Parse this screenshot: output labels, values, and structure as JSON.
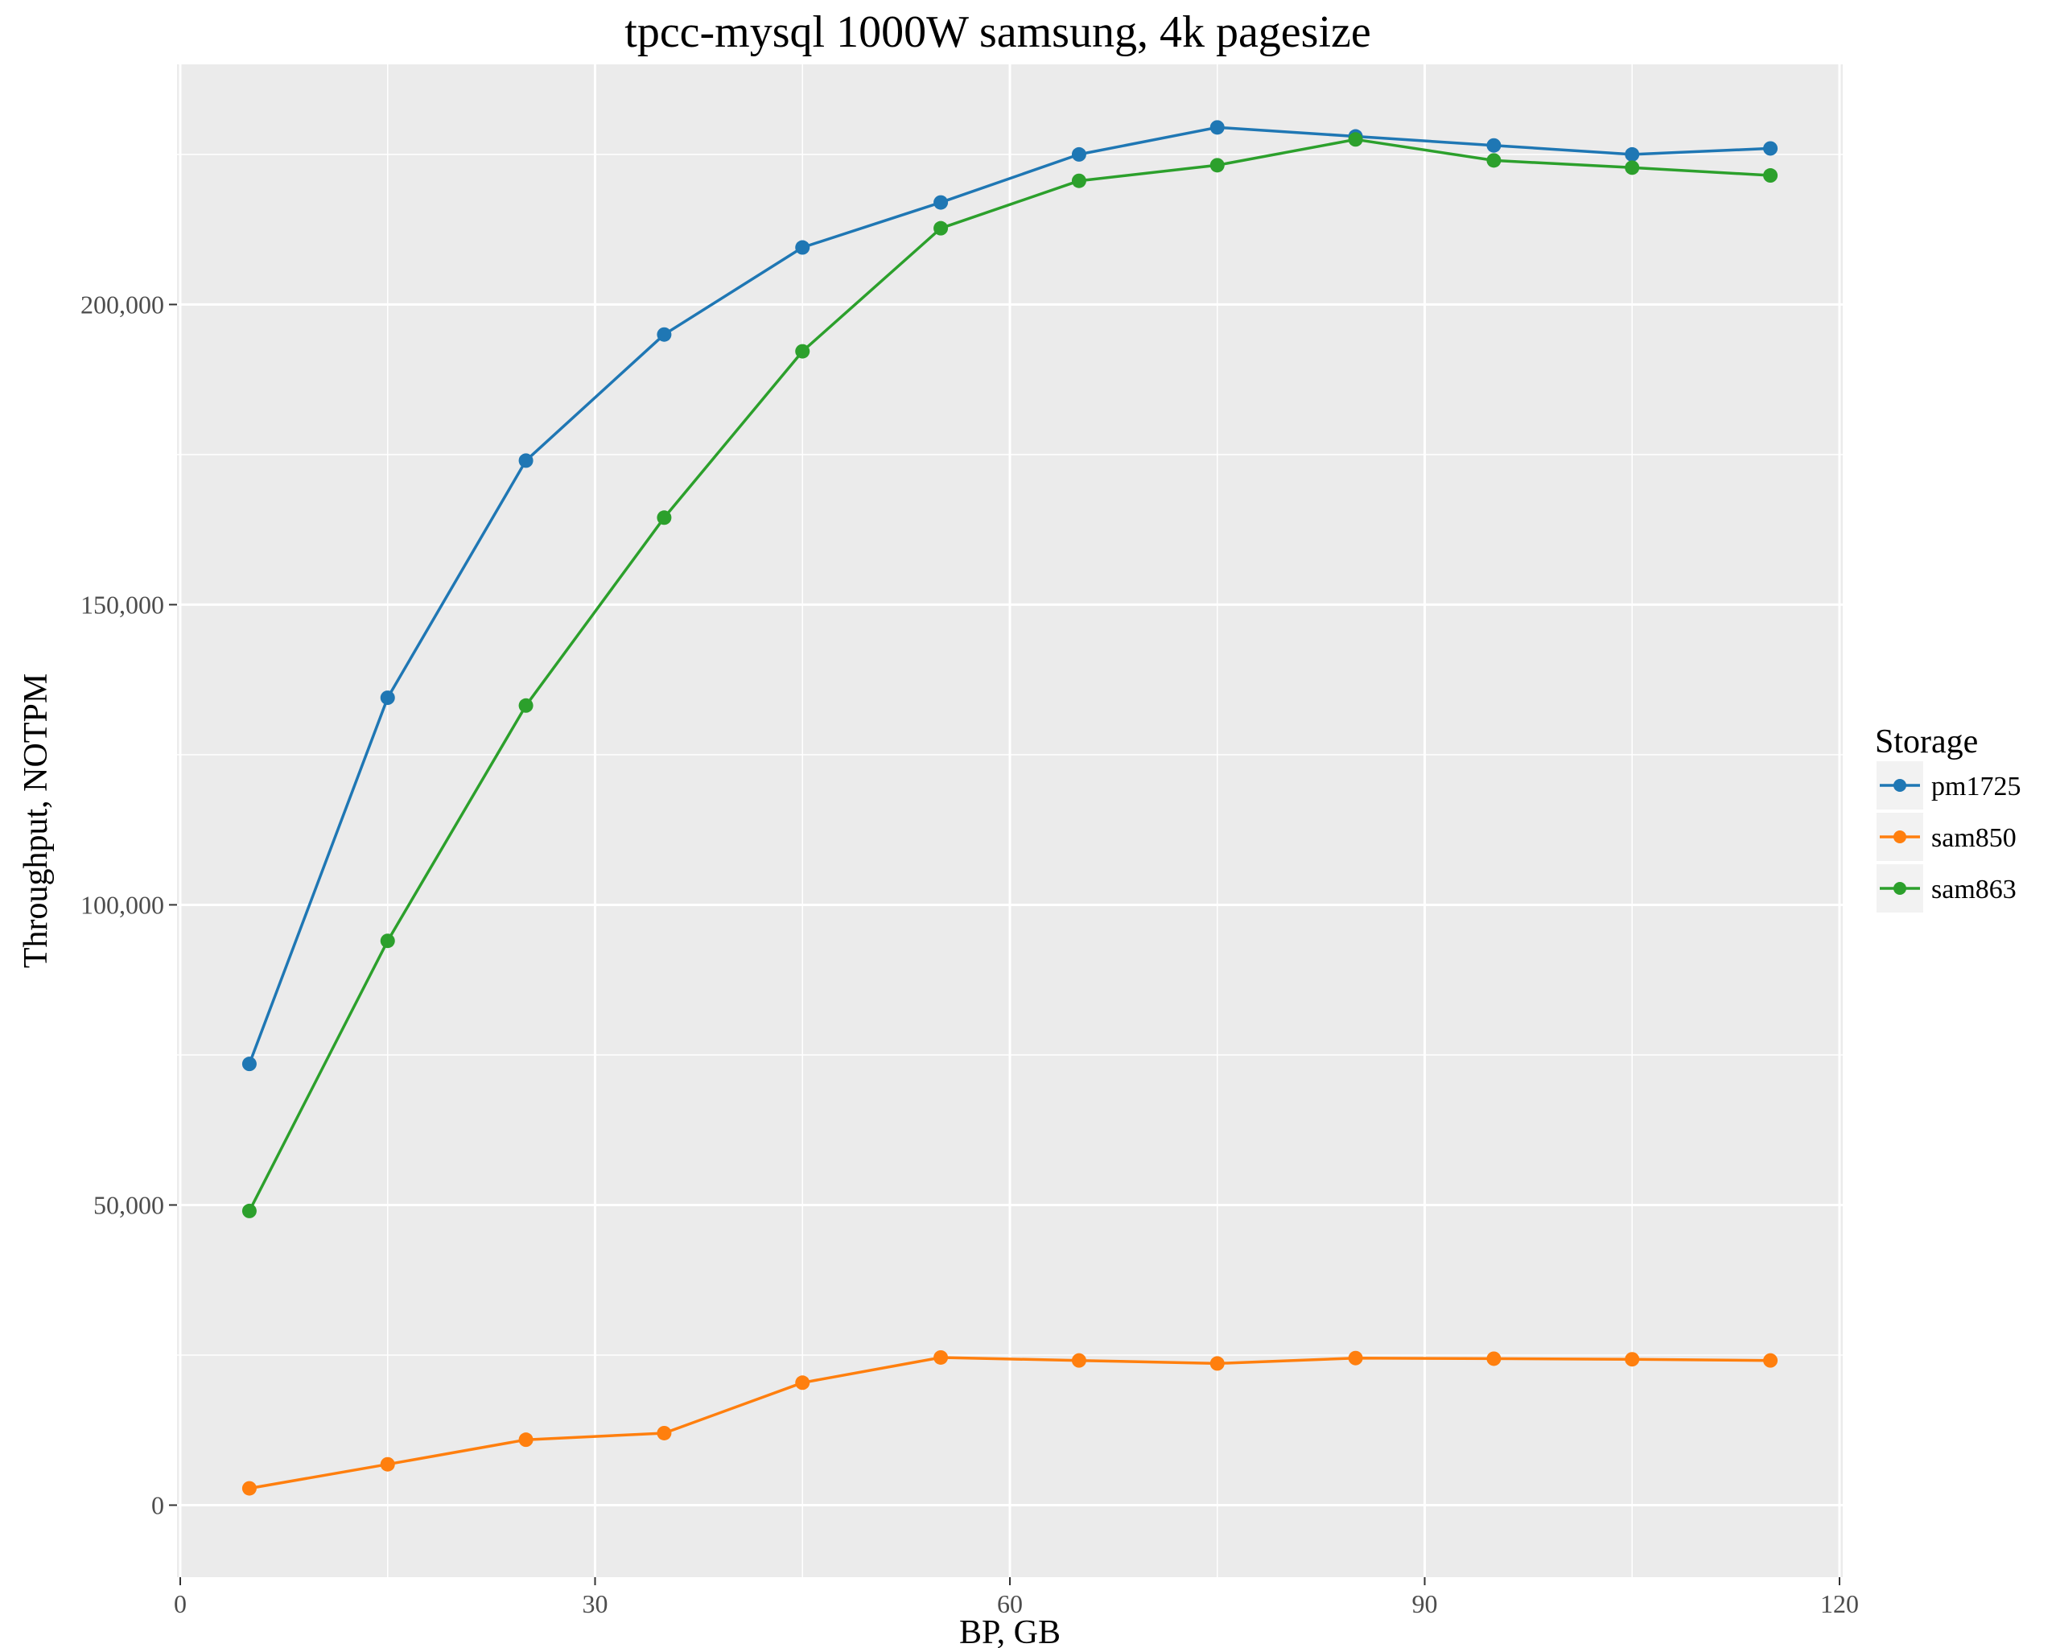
{
  "chart_data": {
    "type": "line",
    "title": "tpcc-mysql 1000W samsung, 4k pagesize",
    "xlabel": "BP, GB",
    "ylabel": "Throughput, NOTPM",
    "xlim": [
      0,
      120
    ],
    "ylim": [
      -12000,
      240000
    ],
    "x_ticks": [
      0,
      30,
      60,
      90,
      120
    ],
    "x_tick_labels": [
      "0",
      "30",
      "60",
      "90",
      "120"
    ],
    "y_ticks": [
      0,
      50000,
      100000,
      150000,
      200000
    ],
    "y_tick_labels": [
      "0",
      "50,000",
      "100,000",
      "150,000",
      "200,000"
    ],
    "grid": true,
    "panel_background": "#ebebeb",
    "legend": {
      "title": "Storage",
      "position": "right"
    },
    "x": [
      5,
      15,
      25,
      35,
      45,
      55,
      65,
      75,
      85,
      95,
      105,
      115
    ],
    "series": [
      {
        "name": "pm1725",
        "color": "#1f77b4",
        "values": [
          73500,
          134500,
          174000,
          195000,
          209500,
          217000,
          225000,
          229500,
          228000,
          226500,
          225000,
          226000
        ]
      },
      {
        "name": "sam850",
        "color": "#ff7f0e",
        "values": [
          2800,
          6800,
          10900,
          12000,
          20400,
          24600,
          24100,
          23600,
          24500,
          24400,
          24300,
          24100
        ]
      },
      {
        "name": "sam863",
        "color": "#2ca02c",
        "values": [
          49000,
          94000,
          133200,
          164500,
          192200,
          212700,
          220600,
          223200,
          227500,
          224000,
          222800,
          221500
        ]
      }
    ]
  }
}
